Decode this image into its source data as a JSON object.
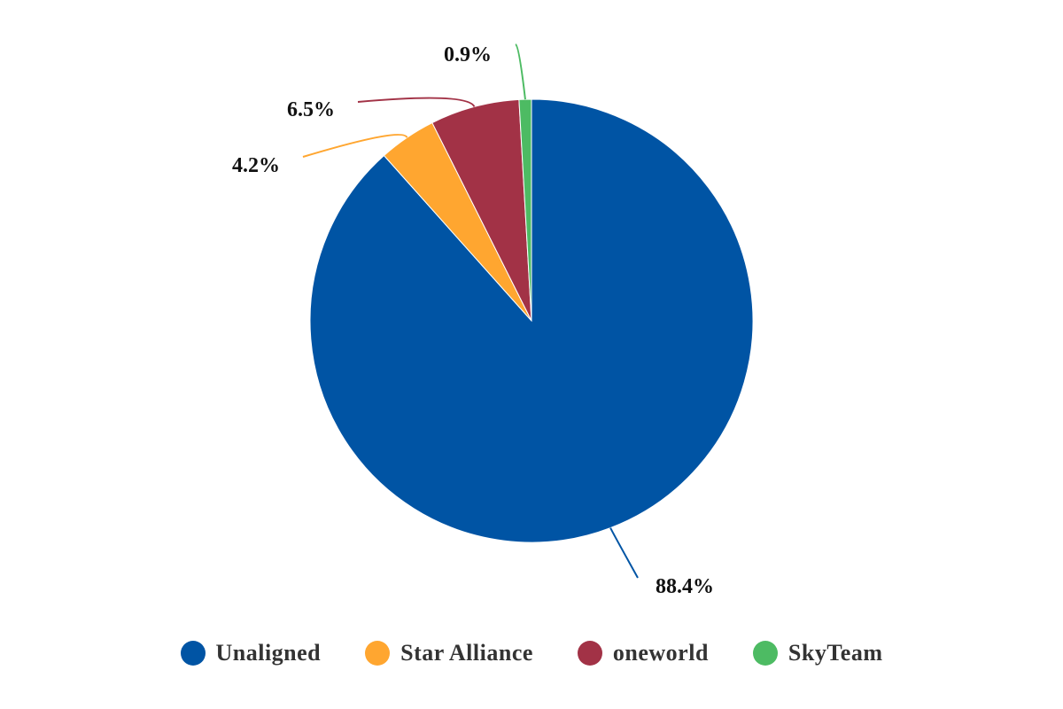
{
  "chart_data": {
    "type": "pie",
    "title": "",
    "slices": [
      {
        "name": "Unaligned",
        "value": 88.4,
        "label": "88.4%",
        "color": "#0054a4"
      },
      {
        "name": "Star Alliance",
        "value": 4.2,
        "label": "4.2%",
        "color": "#ffa630"
      },
      {
        "name": "oneworld",
        "value": 6.5,
        "label": "6.5%",
        "color": "#a23246"
      },
      {
        "name": "SkyTeam",
        "value": 0.9,
        "label": "0.9%",
        "color": "#4dbb63"
      }
    ],
    "legend_position": "bottom-center"
  }
}
